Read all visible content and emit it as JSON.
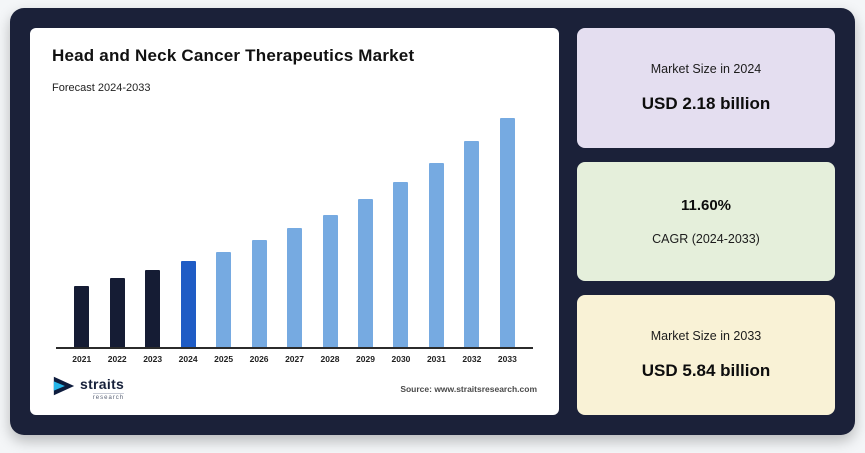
{
  "chart_data": {
    "type": "bar",
    "title": "Head and Neck Cancer Therapeutics Market",
    "subtitle": "Forecast 2024-2033",
    "categories": [
      "2021",
      "2022",
      "2023",
      "2024",
      "2025",
      "2026",
      "2027",
      "2028",
      "2029",
      "2030",
      "2031",
      "2032",
      "2033"
    ],
    "values": [
      1.57,
      1.75,
      1.95,
      2.18,
      2.43,
      2.72,
      3.03,
      3.38,
      3.78,
      4.21,
      4.7,
      5.25,
      5.84
    ],
    "unit": "USD billion",
    "ylim": [
      0,
      6.2
    ],
    "grid": false,
    "legend": "none",
    "colors": [
      "#151c34",
      "#151c34",
      "#151c34",
      "#1f5cc5",
      "#76aae1",
      "#76aae1",
      "#76aae1",
      "#76aae1",
      "#76aae1",
      "#76aae1",
      "#76aae1",
      "#76aae1",
      "#76aae1"
    ]
  },
  "chart": {
    "source": "Source: www.straitsresearch.com"
  },
  "logo": {
    "name": "straits",
    "subname": "research"
  },
  "stats": [
    {
      "label": "Market Size in 2024",
      "value": "USD 2.18 billion",
      "bg": "#e4def0"
    },
    {
      "value": "11.60%",
      "label": "CAGR (2024-2033)",
      "bg": "#e5efdb"
    },
    {
      "label": "Market Size in 2033",
      "value": "USD 5.84 billion",
      "bg": "#f9f2d6"
    }
  ],
  "theme": {
    "panel_bg": "#1b2139",
    "historical_bar": "#151c34",
    "base_year_bar": "#1f5cc5",
    "forecast_bar": "#76aae1"
  }
}
